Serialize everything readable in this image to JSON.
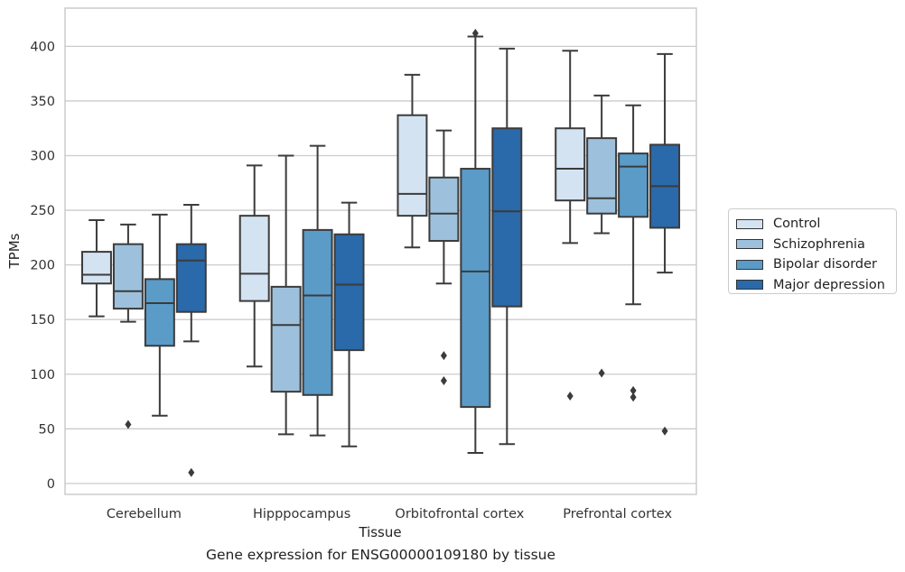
{
  "chart_data": {
    "type": "box",
    "title": "",
    "caption": "Gene expression for ENSG00000109180 by tissue",
    "xlabel": "Tissue",
    "ylabel": "TPMs",
    "ylim": [
      -10,
      435
    ],
    "yticks": [
      0,
      50,
      100,
      150,
      200,
      250,
      300,
      350,
      400
    ],
    "grid": "horizontal",
    "legend_placement": "right",
    "categories": [
      "Cerebellum",
      "Hipppocampus",
      "Orbitofrontal cortex",
      "Prefrontal cortex"
    ],
    "series": [
      {
        "name": "Control",
        "color": "#d4e3f2",
        "boxes": [
          {
            "whisker_low": 153,
            "q1": 183,
            "median": 191,
            "q3": 212,
            "whisker_high": 241,
            "outliers": []
          },
          {
            "whisker_low": 107,
            "q1": 167,
            "median": 192,
            "q3": 245,
            "whisker_high": 291,
            "outliers": []
          },
          {
            "whisker_low": 216,
            "q1": 245,
            "median": 265,
            "q3": 337,
            "whisker_high": 374,
            "outliers": []
          },
          {
            "whisker_low": 220,
            "q1": 259,
            "median": 288,
            "q3": 325,
            "whisker_high": 396,
            "outliers": [
              80
            ]
          }
        ]
      },
      {
        "name": "Schizophrenia",
        "color": "#9dc1dc",
        "boxes": [
          {
            "whisker_low": 148,
            "q1": 160,
            "median": 176,
            "q3": 219,
            "whisker_high": 237,
            "outliers": [
              54
            ]
          },
          {
            "whisker_low": 45,
            "q1": 84,
            "median": 145,
            "q3": 180,
            "whisker_high": 300,
            "outliers": []
          },
          {
            "whisker_low": 183,
            "q1": 222,
            "median": 247,
            "q3": 280,
            "whisker_high": 323,
            "outliers": [
              117,
              94
            ]
          },
          {
            "whisker_low": 229,
            "q1": 247,
            "median": 261,
            "q3": 316,
            "whisker_high": 355,
            "outliers": [
              101
            ]
          }
        ]
      },
      {
        "name": "Bipolar disorder",
        "color": "#5a9bc8",
        "boxes": [
          {
            "whisker_low": 62,
            "q1": 126,
            "median": 165,
            "q3": 187,
            "whisker_high": 246,
            "outliers": []
          },
          {
            "whisker_low": 44,
            "q1": 81,
            "median": 172,
            "q3": 232,
            "whisker_high": 309,
            "outliers": []
          },
          {
            "whisker_low": 28,
            "q1": 70,
            "median": 194,
            "q3": 288,
            "whisker_high": 409,
            "outliers": [
              412
            ]
          },
          {
            "whisker_low": 164,
            "q1": 244,
            "median": 290,
            "q3": 302,
            "whisker_high": 346,
            "outliers": [
              85,
              79
            ]
          }
        ]
      },
      {
        "name": "Major depression",
        "color": "#2a69aa",
        "boxes": [
          {
            "whisker_low": 130,
            "q1": 157,
            "median": 204,
            "q3": 219,
            "whisker_high": 255,
            "outliers": [
              10
            ]
          },
          {
            "whisker_low": 34,
            "q1": 122,
            "median": 182,
            "q3": 228,
            "whisker_high": 257,
            "outliers": []
          },
          {
            "whisker_low": 36,
            "q1": 162,
            "median": 249,
            "q3": 325,
            "whisker_high": 398,
            "outliers": []
          },
          {
            "whisker_low": 193,
            "q1": 234,
            "median": 272,
            "q3": 310,
            "whisker_high": 393,
            "outliers": [
              48
            ]
          }
        ]
      }
    ]
  }
}
